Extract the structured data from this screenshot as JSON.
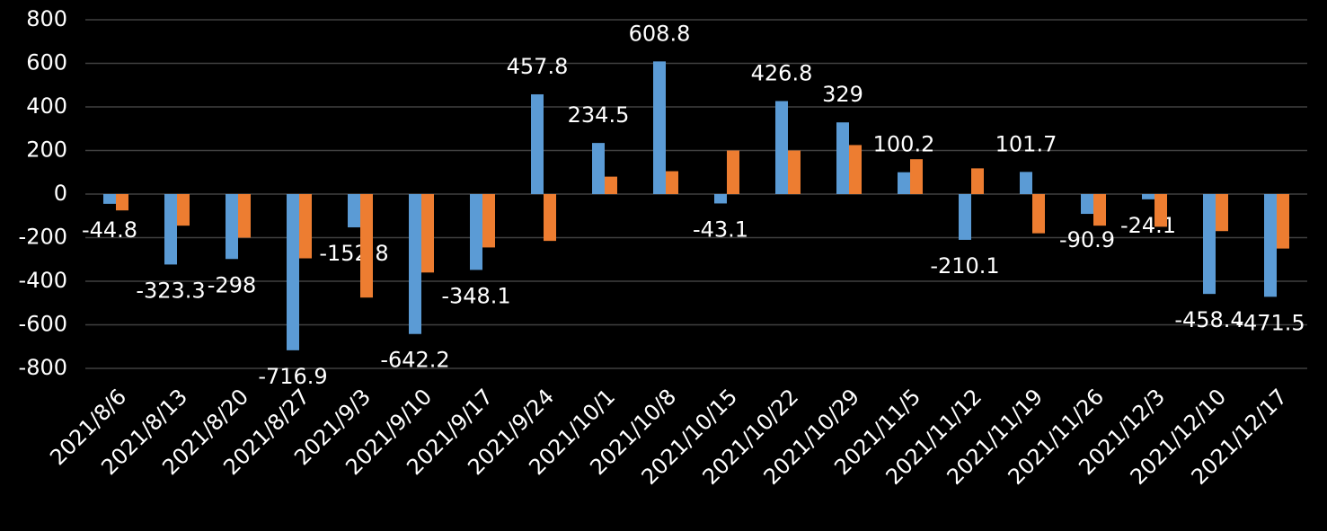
{
  "chart_data": {
    "type": "bar",
    "categories": [
      "2021/8/6",
      "2021/8/13",
      "2021/8/20",
      "2021/8/27",
      "2021/9/3",
      "2021/9/10",
      "2021/9/17",
      "2021/9/24",
      "2021/10/1",
      "2021/10/8",
      "2021/10/15",
      "2021/10/22",
      "2021/10/29",
      "2021/11/5",
      "2021/11/12",
      "2021/11/19",
      "2021/11/26",
      "2021/12/3",
      "2021/12/10",
      "2021/12/17"
    ],
    "series": [
      {
        "color": "#5b9bd5",
        "values": [
          -44.8,
          -323.3,
          -298,
          -716.9,
          -152.8,
          -642.2,
          -348.1,
          457.8,
          234.5,
          608.8,
          -43.1,
          426.8,
          329,
          100.2,
          -210.1,
          101.7,
          -90.9,
          -24.1,
          -458.4,
          -471.5
        ],
        "data_labels": true
      },
      {
        "color": "#ed7d31",
        "values": [
          -75,
          -145,
          -200,
          -295,
          -475,
          -360,
          -245,
          -215,
          80,
          105,
          200,
          200,
          225,
          160,
          118,
          -180,
          -145,
          -150,
          -170,
          -250
        ],
        "data_labels": false
      }
    ],
    "ylim": [
      -800,
      800
    ],
    "yticks": [
      -800,
      -600,
      -400,
      -200,
      0,
      200,
      400,
      600,
      800
    ],
    "grid": true
  }
}
